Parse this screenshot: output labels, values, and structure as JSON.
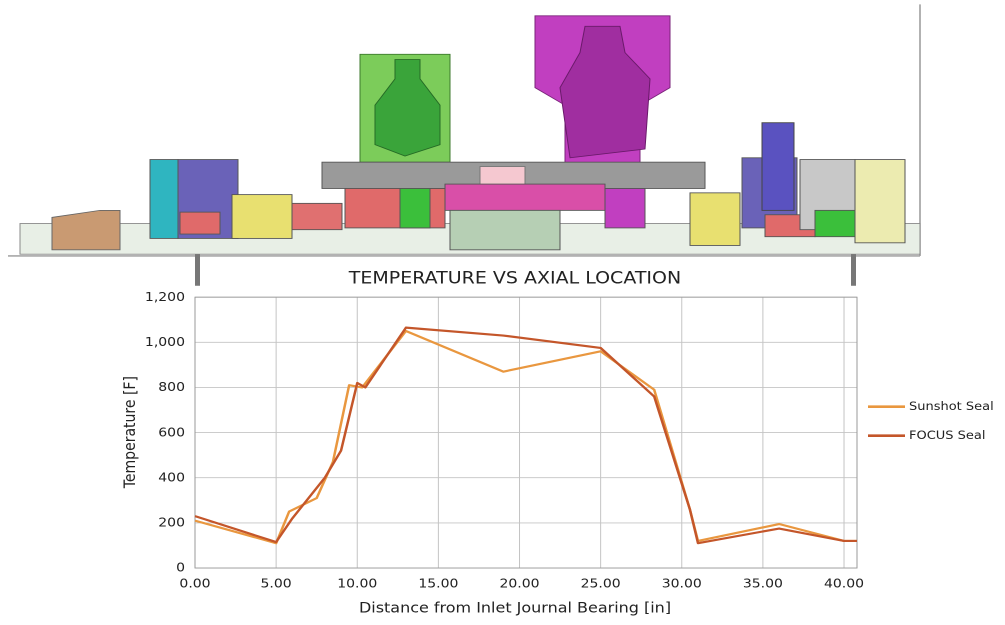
{
  "chart_data": {
    "type": "line",
    "title": "TEMPERATURE VS AXIAL LOCATION",
    "x_label": "Distance from Inlet Journal Bearing [in]",
    "y_label": "Temperature [F]",
    "xlim": [
      0,
      40.8
    ],
    "ylim": [
      0,
      1200
    ],
    "xticks": [
      {
        "value": 0,
        "label": "0.00"
      },
      {
        "value": 5,
        "label": "5.00"
      },
      {
        "value": 10,
        "label": "10.00"
      },
      {
        "value": 15,
        "label": "15.00"
      },
      {
        "value": 20,
        "label": "20.00"
      },
      {
        "value": 25,
        "label": "25.00"
      },
      {
        "value": 30,
        "label": "30.00"
      },
      {
        "value": 35,
        "label": "35.00"
      },
      {
        "value": 40,
        "label": "40.00"
      }
    ],
    "yticks": [
      0,
      200,
      400,
      600,
      800,
      {
        "value": 1000,
        "label": "1,000"
      },
      {
        "value": 1200,
        "label": "1,200"
      }
    ],
    "grid": true,
    "legend": "right",
    "series": [
      {
        "name": "Sunshot Seal",
        "color": "#e9973f",
        "x": [
          0,
          5,
          5.8,
          7.5,
          8.5,
          9.5,
          10.3,
          13,
          19,
          25,
          28.3,
          30.5,
          31,
          36,
          40,
          40.8
        ],
        "values": [
          210,
          110,
          250,
          310,
          470,
          810,
          800,
          1050,
          870,
          960,
          790,
          260,
          120,
          195,
          120,
          120
        ]
      },
      {
        "name": "FOCUS Seal",
        "color": "#c4562a",
        "x": [
          0,
          5,
          6,
          8,
          9,
          10,
          10.5,
          13,
          19,
          25,
          28.3,
          30.5,
          31,
          36,
          40,
          40.8
        ],
        "values": [
          230,
          115,
          220,
          400,
          520,
          820,
          800,
          1065,
          1030,
          975,
          760,
          260,
          110,
          175,
          120,
          120
        ]
      }
    ]
  }
}
